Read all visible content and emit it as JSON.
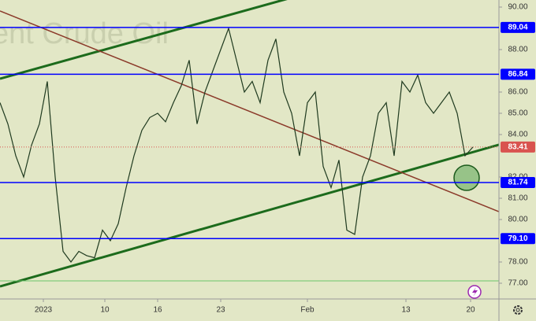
{
  "chart_data": {
    "type": "line",
    "watermark": "ent Crude Oil",
    "values": [
      85.5,
      84.5,
      83,
      82,
      83.5,
      84.5,
      86.5,
      82,
      78.5,
      78,
      78.5,
      78.3,
      78.2,
      79.5,
      79,
      79.8,
      81.5,
      83,
      84.2,
      84.8,
      85,
      84.6,
      85.5,
      86.3,
      87.5,
      84.5,
      86,
      87,
      88,
      89,
      87.5,
      86,
      86.5,
      85.5,
      87.5,
      88.5,
      86,
      85,
      83,
      85.5,
      86,
      82.5,
      81.5,
      82.8,
      79.5,
      79.3,
      82,
      83,
      85,
      85.5,
      83,
      86.5,
      86,
      86.8,
      85.5,
      85,
      85.5,
      86,
      85,
      83,
      83.41
    ],
    "color": "#1f3a1f",
    "xlim": [
      0,
      63
    ],
    "xticks": [
      {
        "value": 5.5,
        "label": "2023"
      },
      {
        "value": 13.3,
        "label": "10"
      },
      {
        "value": 20,
        "label": "16"
      },
      {
        "value": 28,
        "label": "23"
      },
      {
        "value": 39,
        "label": "Feb"
      },
      {
        "value": 51.5,
        "label": "13"
      },
      {
        "value": 59.7,
        "label": "20"
      }
    ],
    "ylim": [
      77,
      90
    ],
    "yticks": [
      {
        "value": 90,
        "label": "90.00"
      },
      {
        "value": 88,
        "label": "88.00"
      },
      {
        "value": 86,
        "label": "86.00"
      },
      {
        "value": 85,
        "label": "85.00"
      },
      {
        "value": 84,
        "label": "84.00"
      },
      {
        "value": 82,
        "label": "82.00"
      },
      {
        "value": 81,
        "label": "81.00"
      },
      {
        "value": 80,
        "label": "80.00"
      },
      {
        "value": 78,
        "label": "78.00"
      },
      {
        "value": 77,
        "label": "77.00"
      }
    ],
    "levels": [
      89.04,
      86.84,
      81.74,
      79.1
    ],
    "level_labels": [
      "89.04",
      "86.84",
      "81.74",
      "79.10"
    ],
    "level_color": "#0000ff",
    "last_price": 83.41,
    "last_price_color": "#d9534f"
  }
}
